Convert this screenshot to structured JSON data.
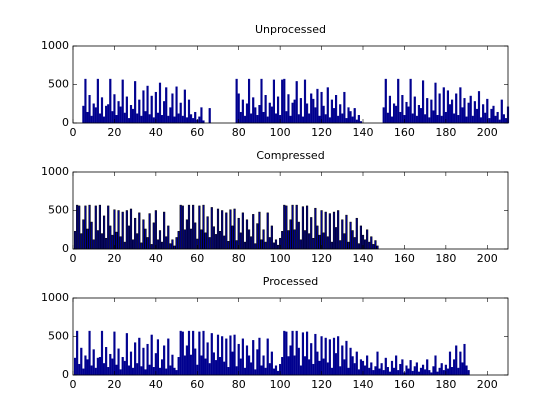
{
  "chart_data": [
    {
      "type": "bar",
      "title": "Unprocessed",
      "color": "#00008f",
      "edgecolor": "#00008f",
      "xlim": [
        0,
        210
      ],
      "ylim": [
        0,
        1000
      ],
      "xticks": [
        0,
        20,
        40,
        60,
        80,
        100,
        120,
        140,
        160,
        180,
        200
      ],
      "yticks": [
        0,
        500,
        1000
      ],
      "x": [
        1,
        2,
        3,
        4,
        5,
        6,
        7,
        8,
        9,
        10,
        11,
        12,
        13,
        14,
        15,
        16,
        17,
        18,
        19,
        20,
        21,
        22,
        23,
        24,
        25,
        26,
        27,
        28,
        29,
        30,
        31,
        32,
        33,
        34,
        35,
        36,
        37,
        38,
        39,
        40,
        41,
        42,
        43,
        44,
        45,
        46,
        47,
        48,
        49,
        50,
        51,
        52,
        53,
        54,
        55,
        56,
        57,
        58,
        59,
        60,
        61,
        62,
        63,
        64,
        65,
        66,
        67,
        68,
        69,
        70,
        71,
        72,
        73,
        74,
        75,
        76,
        77,
        78,
        79,
        80,
        81,
        82,
        83,
        84,
        85,
        86,
        87,
        88,
        89,
        90,
        91,
        92,
        93,
        94,
        95,
        96,
        97,
        98,
        99,
        100,
        101,
        102,
        103,
        104,
        105,
        106,
        107,
        108,
        109,
        110,
        111,
        112,
        113,
        114,
        115,
        116,
        117,
        118,
        119,
        120,
        121,
        122,
        123,
        124,
        125,
        126,
        127,
        128,
        129,
        130,
        131,
        132,
        133,
        134,
        135,
        136,
        137,
        138,
        139,
        140,
        141,
        142,
        143,
        144,
        145,
        146,
        147,
        148,
        149,
        150,
        151,
        152,
        153,
        154,
        155,
        156,
        157,
        158,
        159,
        160,
        161,
        162,
        163,
        164,
        165,
        166,
        167,
        168,
        169,
        170,
        171,
        172,
        173,
        174,
        175,
        176,
        177,
        178,
        179,
        180,
        181,
        182,
        183,
        184,
        185,
        186,
        187,
        188,
        189,
        190,
        191,
        192,
        193,
        194,
        195,
        196,
        197,
        198,
        199,
        200,
        201,
        202,
        203,
        204,
        205,
        206,
        207,
        208,
        209,
        210
      ],
      "values": [
        0,
        0,
        0,
        0,
        220,
        570,
        140,
        360,
        90,
        250,
        200,
        570,
        120,
        330,
        80,
        220,
        240,
        570,
        150,
        370,
        100,
        280,
        210,
        560,
        130,
        340,
        60,
        230,
        180,
        540,
        120,
        300,
        90,
        420,
        150,
        480,
        110,
        350,
        70,
        400,
        130,
        520,
        100,
        280,
        460,
        90,
        200,
        380,
        80,
        470,
        120,
        260,
        90,
        430,
        70,
        300,
        110,
        60,
        140,
        40,
        80,
        200,
        30,
        0,
        0,
        190,
        0,
        0,
        0,
        0,
        0,
        0,
        0,
        0,
        0,
        0,
        0,
        0,
        570,
        380,
        140,
        300,
        90,
        250,
        570,
        120,
        330,
        200,
        100,
        230,
        570,
        140,
        360,
        80,
        260,
        210,
        560,
        120,
        340,
        100,
        560,
        570,
        150,
        370,
        90,
        260,
        300,
        540,
        110,
        320,
        80,
        560,
        250,
        120,
        380,
        310,
        200,
        440,
        90,
        400,
        220,
        110,
        460,
        70,
        300,
        190,
        360,
        90,
        240,
        120,
        400,
        60,
        200,
        150,
        80,
        190,
        40,
        100,
        20,
        0,
        0,
        0,
        0,
        0,
        0,
        0,
        0,
        0,
        0,
        200,
        570,
        130,
        350,
        80,
        250,
        220,
        570,
        140,
        360,
        100,
        270,
        210,
        570,
        120,
        340,
        90,
        230,
        190,
        550,
        110,
        320,
        70,
        300,
        160,
        520,
        100,
        380,
        90,
        460,
        140,
        420,
        240,
        300,
        120,
        380,
        100,
        460,
        200,
        320,
        80,
        260,
        350,
        90,
        280,
        180,
        410,
        70,
        240,
        130,
        310,
        60,
        180,
        220,
        90,
        140,
        40,
        300,
        110,
        60,
        210
      ]
    },
    {
      "type": "bar",
      "title": "Compressed",
      "color": "#00008f",
      "edgecolor": "#000000",
      "xlim": [
        0,
        210
      ],
      "ylim": [
        0,
        1000
      ],
      "xticks": [
        0,
        20,
        40,
        60,
        80,
        100,
        120,
        140,
        160,
        180,
        200
      ],
      "yticks": [
        0,
        500,
        1000
      ],
      "x": [
        1,
        2,
        3,
        4,
        5,
        6,
        7,
        8,
        9,
        10,
        11,
        12,
        13,
        14,
        15,
        16,
        17,
        18,
        19,
        20,
        21,
        22,
        23,
        24,
        25,
        26,
        27,
        28,
        29,
        30,
        31,
        32,
        33,
        34,
        35,
        36,
        37,
        38,
        39,
        40,
        41,
        42,
        43,
        44,
        45,
        46,
        47,
        48,
        49,
        50,
        51,
        52,
        53,
        54,
        55,
        56,
        57,
        58,
        59,
        60,
        61,
        62,
        63,
        64,
        65,
        66,
        67,
        68,
        69,
        70,
        71,
        72,
        73,
        74,
        75,
        76,
        77,
        78,
        79,
        80,
        81,
        82,
        83,
        84,
        85,
        86,
        87,
        88,
        89,
        90,
        91,
        92,
        93,
        94,
        95,
        96,
        97,
        98,
        99,
        100,
        101,
        102,
        103,
        104,
        105,
        106,
        107,
        108,
        109,
        110,
        111,
        112,
        113,
        114,
        115,
        116,
        117,
        118,
        119,
        120,
        121,
        122,
        123,
        124,
        125,
        126,
        127,
        128,
        129,
        130,
        131,
        132,
        133,
        134,
        135,
        136,
        137,
        138,
        139,
        140,
        141,
        142,
        143,
        144,
        145,
        146,
        147
      ],
      "values": [
        230,
        570,
        560,
        200,
        380,
        560,
        260,
        570,
        350,
        120,
        560,
        240,
        570,
        200,
        430,
        140,
        560,
        300,
        180,
        510,
        220,
        500,
        160,
        480,
        90,
        500,
        300,
        520,
        120,
        400,
        200,
        470,
        80,
        380,
        260,
        150,
        460,
        60,
        340,
        500,
        120,
        240,
        90,
        480,
        160,
        300,
        70,
        120,
        40,
        150,
        230,
        570,
        560,
        250,
        380,
        570,
        260,
        570,
        340,
        130,
        560,
        250,
        570,
        210,
        420,
        150,
        540,
        290,
        190,
        520,
        230,
        500,
        170,
        470,
        100,
        510,
        300,
        520,
        110,
        400,
        210,
        470,
        90,
        380,
        250,
        160,
        450,
        70,
        330,
        480,
        120,
        250,
        90,
        470,
        150,
        300,
        80,
        120,
        50,
        140,
        230,
        570,
        560,
        240,
        380,
        570,
        250,
        570,
        350,
        120,
        550,
        240,
        560,
        200,
        410,
        140,
        530,
        300,
        180,
        500,
        210,
        480,
        160,
        460,
        90,
        480,
        280,
        500,
        110,
        380,
        200,
        440,
        90,
        350,
        240,
        150,
        400,
        70,
        300,
        180,
        120,
        250,
        90,
        160,
        60,
        110,
        40
      ]
    },
    {
      "type": "bar",
      "title": "Processed",
      "color": "#00008f",
      "edgecolor": "#00008f",
      "xlim": [
        0,
        210
      ],
      "ylim": [
        0,
        1000
      ],
      "xticks": [
        0,
        20,
        40,
        60,
        80,
        100,
        120,
        140,
        160,
        180,
        200
      ],
      "yticks": [
        0,
        500,
        1000
      ],
      "x": [
        1,
        2,
        3,
        4,
        5,
        6,
        7,
        8,
        9,
        10,
        11,
        12,
        13,
        14,
        15,
        16,
        17,
        18,
        19,
        20,
        21,
        22,
        23,
        24,
        25,
        26,
        27,
        28,
        29,
        30,
        31,
        32,
        33,
        34,
        35,
        36,
        37,
        38,
        39,
        40,
        41,
        42,
        43,
        44,
        45,
        46,
        47,
        48,
        49,
        50,
        51,
        52,
        53,
        54,
        55,
        56,
        57,
        58,
        59,
        60,
        61,
        62,
        63,
        64,
        65,
        66,
        67,
        68,
        69,
        70,
        71,
        72,
        73,
        74,
        75,
        76,
        77,
        78,
        79,
        80,
        81,
        82,
        83,
        84,
        85,
        86,
        87,
        88,
        89,
        90,
        91,
        92,
        93,
        94,
        95,
        96,
        97,
        98,
        99,
        100,
        101,
        102,
        103,
        104,
        105,
        106,
        107,
        108,
        109,
        110,
        111,
        112,
        113,
        114,
        115,
        116,
        117,
        118,
        119,
        120,
        121,
        122,
        123,
        124,
        125,
        126,
        127,
        128,
        129,
        130,
        131,
        132,
        133,
        134,
        135,
        136,
        137,
        138,
        139,
        140,
        141,
        142,
        143,
        144,
        145,
        146,
        147,
        148,
        149,
        150,
        151,
        152,
        153,
        154,
        155,
        156,
        157,
        158,
        159,
        160,
        161,
        162,
        163,
        164,
        165,
        166,
        167,
        168,
        169,
        170,
        171,
        172,
        173,
        174,
        175,
        176,
        177,
        178,
        179,
        180,
        181,
        182,
        183,
        184,
        185,
        186,
        187,
        188,
        189,
        190,
        191
      ],
      "values": [
        220,
        570,
        140,
        350,
        80,
        250,
        200,
        570,
        120,
        330,
        90,
        220,
        230,
        570,
        150,
        360,
        100,
        270,
        210,
        560,
        130,
        340,
        70,
        230,
        180,
        540,
        120,
        300,
        90,
        420,
        150,
        480,
        110,
        350,
        70,
        400,
        130,
        520,
        100,
        280,
        460,
        90,
        200,
        380,
        80,
        470,
        120,
        260,
        90,
        60,
        230,
        570,
        560,
        250,
        380,
        570,
        260,
        570,
        340,
        130,
        560,
        250,
        570,
        210,
        420,
        150,
        540,
        290,
        190,
        520,
        230,
        500,
        170,
        470,
        100,
        510,
        300,
        520,
        110,
        400,
        210,
        470,
        90,
        380,
        250,
        160,
        450,
        70,
        330,
        480,
        120,
        250,
        90,
        470,
        150,
        300,
        80,
        120,
        50,
        140,
        230,
        570,
        560,
        240,
        380,
        570,
        250,
        570,
        350,
        120,
        550,
        240,
        560,
        200,
        410,
        140,
        530,
        300,
        180,
        500,
        210,
        480,
        160,
        460,
        90,
        480,
        280,
        500,
        110,
        380,
        200,
        440,
        90,
        350,
        240,
        150,
        300,
        70,
        200,
        180,
        120,
        250,
        90,
        160,
        60,
        110,
        300,
        80,
        150,
        60,
        220,
        100,
        40,
        180,
        90,
        250,
        60,
        140,
        200,
        30,
        120,
        80,
        190,
        50,
        110,
        160,
        40,
        90,
        130,
        70,
        200,
        60,
        30,
        110,
        250,
        40,
        90,
        150,
        60,
        130,
        80,
        300,
        100,
        200,
        380,
        90,
        300,
        160,
        400,
        120,
        60
      ]
    }
  ]
}
